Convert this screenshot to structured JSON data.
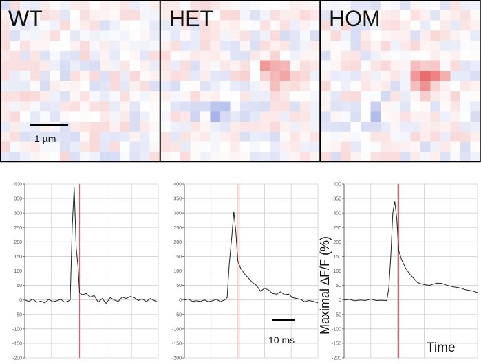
{
  "image_panels": [
    {
      "label": "WT",
      "hotspot_strength": 0.05,
      "cool_strength": 0.1
    },
    {
      "label": "HET",
      "hotspot_strength": 0.65,
      "cool_strength": 0.45
    },
    {
      "label": "HOM",
      "hotspot_strength": 0.85,
      "cool_strength": 0.3
    }
  ],
  "scale_bar_spatial": "1 µm",
  "scale_bar_time": "10 ms",
  "ylabel": "Maximal ∆F/F (%)",
  "xlabel": "Time",
  "colors": {
    "trace": "#222222",
    "marker": "#e06060",
    "grid": "#cfcfcf",
    "hot": "#e23c3c",
    "cool": "#3c56c8"
  },
  "chart_data": [
    {
      "type": "line",
      "title": "WT",
      "ylim": [
        -200,
        400
      ],
      "yticks": [
        400,
        350,
        300,
        250,
        200,
        150,
        100,
        50,
        0,
        -50,
        -100,
        -150,
        -200
      ],
      "xlim": [
        0,
        100
      ],
      "marker_x": 41,
      "series": [
        {
          "x": [
            0,
            3,
            6,
            9,
            12,
            15,
            18,
            21,
            24,
            27,
            30,
            33,
            34,
            35.5,
            37,
            38.5,
            40,
            41,
            43,
            46,
            49,
            52,
            55,
            58,
            61,
            64,
            67,
            70,
            73,
            76,
            79,
            82,
            85,
            88,
            91,
            94,
            97,
            100
          ],
          "values": [
            0,
            -5,
            3,
            -8,
            -4,
            -10,
            2,
            -6,
            -3,
            2,
            -8,
            -3,
            0,
            250,
            390,
            180,
            110,
            25,
            18,
            22,
            10,
            15,
            -8,
            5,
            -12,
            8,
            0,
            -5,
            10,
            5,
            12,
            8,
            -2,
            4,
            -6,
            5,
            -2,
            -8
          ]
        }
      ]
    },
    {
      "type": "line",
      "title": "HET",
      "ylim": [
        -200,
        400
      ],
      "yticks": [
        400,
        350,
        300,
        250,
        200,
        150,
        100,
        50,
        0,
        -50,
        -100,
        -150,
        -200
      ],
      "xlim": [
        0,
        100
      ],
      "marker_x": 41,
      "series": [
        {
          "x": [
            0,
            3,
            6,
            9,
            12,
            15,
            18,
            21,
            24,
            27,
            30,
            32,
            33.5,
            35.5,
            37,
            38.5,
            40,
            42,
            45,
            48,
            51,
            54,
            57,
            60,
            63,
            66,
            69,
            72,
            75,
            78,
            81,
            84,
            87,
            90,
            93,
            96,
            100
          ],
          "values": [
            0,
            3,
            -5,
            -3,
            -5,
            0,
            -6,
            -3,
            2,
            -6,
            0,
            8,
            120,
            220,
            305,
            235,
            135,
            110,
            90,
            75,
            60,
            50,
            30,
            40,
            35,
            22,
            20,
            28,
            18,
            20,
            8,
            5,
            2,
            -6,
            -2,
            -4,
            -10
          ]
        }
      ]
    },
    {
      "type": "line",
      "title": "HOM",
      "ylim": [
        -200,
        400
      ],
      "yticks": [
        400,
        350,
        300,
        250,
        200,
        150,
        100,
        50,
        0,
        -50,
        -100,
        -150,
        -200
      ],
      "xlim": [
        0,
        100
      ],
      "marker_x": 41,
      "series": [
        {
          "x": [
            0,
            4,
            8,
            12,
            16,
            20,
            24,
            28,
            32,
            33.5,
            35,
            36.5,
            38,
            39.5,
            41,
            43,
            46,
            49,
            52,
            55,
            58,
            61,
            64,
            67,
            70,
            73,
            76,
            79,
            82,
            85,
            88,
            91,
            94,
            97,
            100
          ],
          "values": [
            0,
            2,
            -3,
            0,
            -2,
            3,
            -2,
            -1,
            -2,
            40,
            150,
            300,
            340,
            280,
            170,
            140,
            110,
            90,
            75,
            60,
            55,
            52,
            50,
            55,
            58,
            57,
            52,
            48,
            45,
            43,
            40,
            35,
            33,
            30,
            25
          ]
        }
      ]
    }
  ]
}
